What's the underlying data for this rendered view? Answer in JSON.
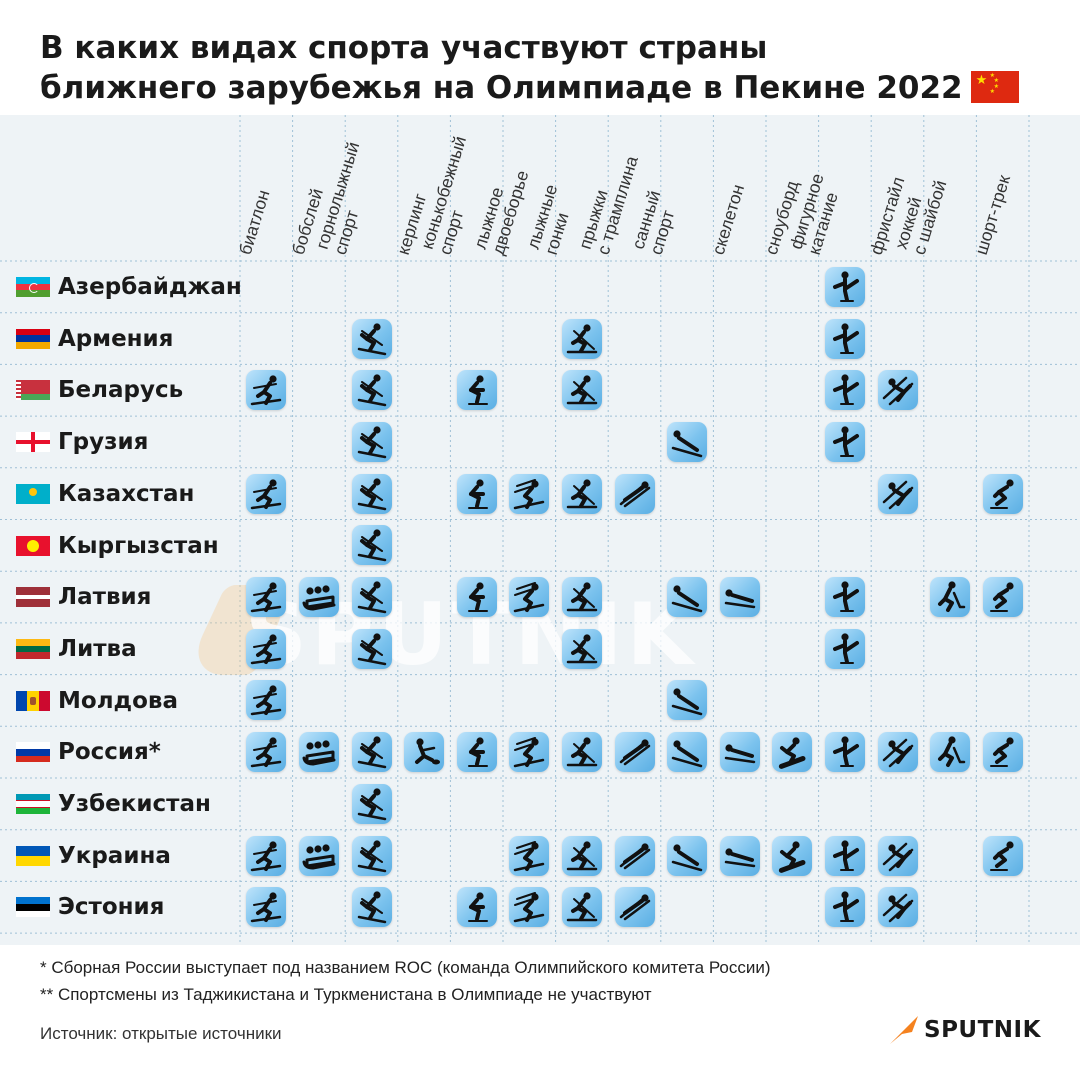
{
  "title": {
    "line1": "В каких видах спорта участвуют страны",
    "line2": "ближнего зарубежья на Олимпиаде в Пекине 2022"
  },
  "colors": {
    "grid_bg": "#eef3f6",
    "icon_light": "#bfe4fb",
    "icon_dark": "#5aaee3",
    "accent": "#f5821f"
  },
  "sports": [
    {
      "lines": [
        "биатлон"
      ],
      "icon": "biathlon-icon"
    },
    {
      "lines": [
        "бобслей"
      ],
      "icon": "bobsleigh-icon"
    },
    {
      "lines": [
        "горнолыжный",
        "спорт"
      ],
      "icon": "alpine-skiing-icon"
    },
    {
      "lines": [
        "керлинг"
      ],
      "icon": "curling-icon"
    },
    {
      "lines": [
        "конькобежный",
        "спорт"
      ],
      "icon": "speed-skating-icon"
    },
    {
      "lines": [
        "лыжное",
        "двоеборье"
      ],
      "icon": "nordic-combined-icon"
    },
    {
      "lines": [
        "лыжные",
        "гонки"
      ],
      "icon": "cross-country-icon"
    },
    {
      "lines": [
        "прыжки",
        "с трамплина"
      ],
      "icon": "ski-jumping-icon"
    },
    {
      "lines": [
        "санный",
        "спорт"
      ],
      "icon": "luge-icon"
    },
    {
      "lines": [
        "скелетон"
      ],
      "icon": "skeleton-icon"
    },
    {
      "lines": [
        "сноуборд"
      ],
      "icon": "snowboard-icon"
    },
    {
      "lines": [
        "фигурное",
        "катание"
      ],
      "icon": "figure-skating-icon"
    },
    {
      "lines": [
        "фристайл"
      ],
      "icon": "freestyle-icon"
    },
    {
      "lines": [
        "хоккей",
        "с шайбой"
      ],
      "icon": "ice-hockey-icon"
    },
    {
      "lines": [
        "шорт-трек"
      ],
      "icon": "short-track-icon"
    }
  ],
  "countries": [
    {
      "name": "Азербайджан",
      "flag": "azerbaijan-flag",
      "sports": [
        11
      ]
    },
    {
      "name": "Армения",
      "flag": "armenia-flag",
      "sports": [
        2,
        6,
        11
      ]
    },
    {
      "name": "Беларусь",
      "flag": "belarus-flag",
      "sports": [
        0,
        2,
        4,
        6,
        11,
        12
      ]
    },
    {
      "name": "Грузия",
      "flag": "georgia-flag",
      "sports": [
        2,
        8,
        11
      ]
    },
    {
      "name": "Казахстан",
      "flag": "kazakhstan-flag",
      "sports": [
        0,
        2,
        4,
        5,
        6,
        7,
        12,
        14
      ]
    },
    {
      "name": "Кыргызстан",
      "flag": "kyrgyzstan-flag",
      "sports": [
        2
      ]
    },
    {
      "name": "Латвия",
      "flag": "latvia-flag",
      "sports": [
        0,
        1,
        2,
        4,
        5,
        6,
        8,
        9,
        11,
        13,
        14
      ]
    },
    {
      "name": "Литва",
      "flag": "lithuania-flag",
      "sports": [
        0,
        2,
        6,
        11
      ]
    },
    {
      "name": "Молдова",
      "flag": "moldova-flag",
      "sports": [
        0,
        8
      ]
    },
    {
      "name": "Россия*",
      "flag": "russia-flag",
      "sports": [
        0,
        1,
        2,
        3,
        4,
        5,
        6,
        7,
        8,
        9,
        10,
        11,
        12,
        13,
        14
      ]
    },
    {
      "name": "Узбекистан",
      "flag": "uzbekistan-flag",
      "sports": [
        2
      ]
    },
    {
      "name": "Украина",
      "flag": "ukraine-flag",
      "sports": [
        0,
        1,
        2,
        5,
        6,
        7,
        8,
        9,
        10,
        11,
        12,
        14
      ]
    },
    {
      "name": "Эстония",
      "flag": "estonia-flag",
      "sports": [
        0,
        2,
        4,
        5,
        6,
        7,
        11,
        12
      ]
    }
  ],
  "watermark": "SPUTNIK",
  "footnotes": [
    "* Сборная России выступает под названием ROC (команда Олимпийского комитета России)",
    "** Спортсмены из Таджикистана и Туркменистана в Олимпиаде не участвуют"
  ],
  "source": "Источник: открытые источники",
  "logo": "SPUTNIK"
}
